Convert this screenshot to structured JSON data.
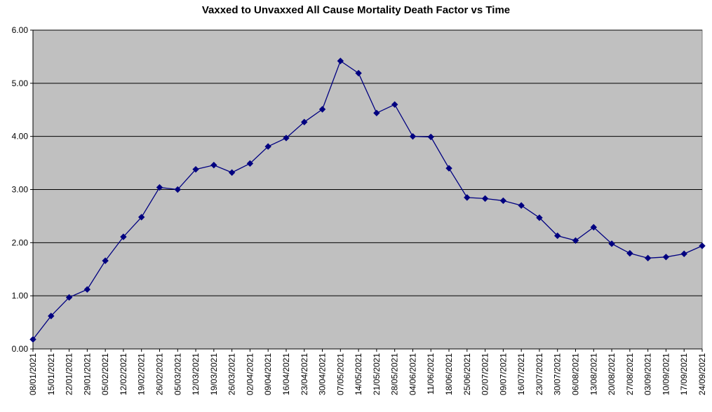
{
  "chart_data": {
    "type": "line",
    "title": "Vaxxed to Unvaxxed All Cause Mortality Death Factor vs Time",
    "xlabel": "",
    "ylabel": "",
    "ylim": [
      0,
      6
    ],
    "yticks": [
      "0.00",
      "1.00",
      "2.00",
      "3.00",
      "4.00",
      "5.00",
      "6.00"
    ],
    "grid": "horizontal",
    "plot_background": "#c0c0c0",
    "colors": {
      "line": "#000080",
      "marker": "#000080",
      "grid": "#000000"
    },
    "x": [
      "08/01/2021",
      "15/01/2021",
      "22/01/2021",
      "29/01/2021",
      "05/02/2021",
      "12/02/2021",
      "19/02/2021",
      "26/02/2021",
      "05/03/2021",
      "12/03/2021",
      "19/03/2021",
      "26/03/2021",
      "02/04/2021",
      "09/04/2021",
      "16/04/2021",
      "23/04/2021",
      "30/04/2021",
      "07/05/2021",
      "14/05/2021",
      "21/05/2021",
      "28/05/2021",
      "04/06/2021",
      "11/06/2021",
      "18/06/2021",
      "25/06/2021",
      "02/07/2021",
      "09/07/2021",
      "16/07/2021",
      "23/07/2021",
      "30/07/2021",
      "06/08/2021",
      "13/08/2021",
      "20/08/2021",
      "27/08/2021",
      "03/09/2021",
      "10/09/2021",
      "17/09/2021",
      "24/09/2021"
    ],
    "series": [
      {
        "values": [
          0.18,
          0.62,
          0.97,
          1.12,
          1.66,
          2.11,
          2.48,
          3.04,
          3.0,
          3.38,
          3.46,
          3.32,
          3.49,
          3.81,
          3.97,
          4.27,
          4.51,
          5.42,
          5.19,
          4.44,
          4.6,
          4.0,
          3.99,
          3.4,
          2.85,
          2.83,
          2.79,
          2.7,
          2.47,
          2.13,
          2.04,
          2.29,
          1.98,
          1.8,
          1.71,
          1.73,
          1.79,
          1.94
        ]
      }
    ]
  }
}
